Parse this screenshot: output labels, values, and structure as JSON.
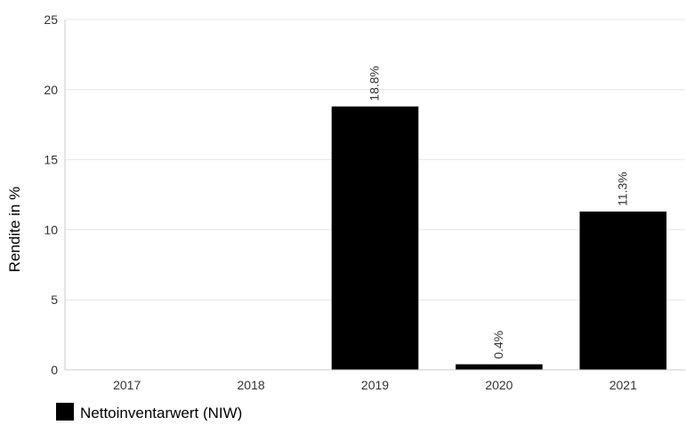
{
  "chart_data": {
    "type": "bar",
    "categories": [
      "2017",
      "2018",
      "2019",
      "2020",
      "2021"
    ],
    "series": [
      {
        "name": "Nettoinventarwert (NIW)",
        "values": [
          null,
          null,
          18.8,
          0.4,
          11.3
        ],
        "labels": [
          "",
          "",
          "18.8%",
          "0.4%",
          "11.3%"
        ]
      }
    ],
    "ylabel": "Rendite in %",
    "xlabel": "",
    "ylim": [
      0,
      25
    ],
    "yticks": [
      0,
      5,
      10,
      15,
      20,
      25
    ],
    "grid": true,
    "legend_position": "bottom-left",
    "bar_color": "#000000",
    "grid_color": "#e6e6e6",
    "axis_color": "#cccccc",
    "text_color": "#333333"
  }
}
